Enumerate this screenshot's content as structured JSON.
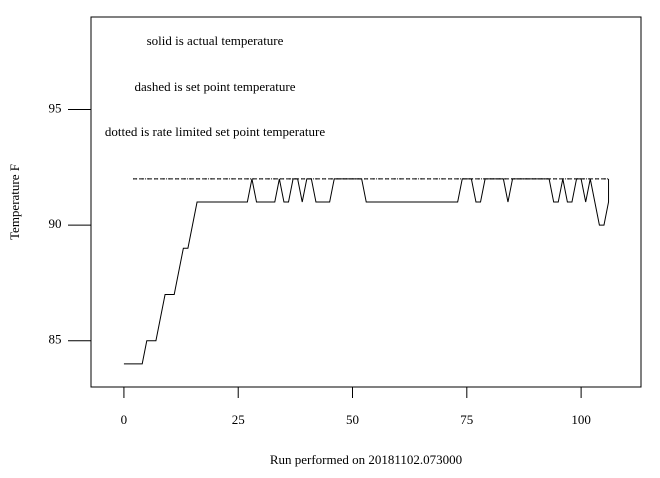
{
  "chart_data": {
    "type": "line",
    "x_label": "Run performed on 20181102.073000",
    "y_label": "Temperature F",
    "annotations": [
      "solid is actual temperature",
      "dashed is set point temperature",
      "dotted is rate limited set point temperature"
    ],
    "xlim": [
      -7.2,
      113.1
    ],
    "ylim": [
      83.0,
      99.0
    ],
    "xticks": [
      0,
      25,
      50,
      75,
      100
    ],
    "yticks": [
      85,
      90,
      95
    ],
    "series": [
      {
        "color": "#000000",
        "style": "solid",
        "x": [
          0,
          4,
          5,
          7,
          9,
          11,
          13,
          14,
          16,
          27,
          28,
          29,
          33,
          34,
          35,
          36,
          37,
          38,
          39,
          40,
          41,
          42,
          45,
          46,
          52,
          53,
          73,
          74,
          76,
          77,
          78,
          79,
          83,
          84,
          85,
          93,
          94,
          95,
          96,
          97,
          98,
          99,
          100,
          101,
          102,
          103,
          104,
          105,
          106,
          106
        ],
        "values": [
          84,
          84,
          85,
          85,
          87,
          87,
          89,
          89,
          91,
          91,
          92,
          91,
          91,
          92,
          91,
          91,
          92,
          92,
          91,
          92,
          92,
          91,
          91,
          92,
          92,
          91,
          91,
          92,
          92,
          91,
          91,
          92,
          92,
          91,
          92,
          92,
          91,
          91,
          92,
          91,
          91,
          92,
          92,
          91,
          92,
          91,
          90,
          90,
          91,
          92
        ]
      },
      {
        "color": "#000000",
        "style": "dashed",
        "x": [
          2,
          106
        ],
        "values": [
          92,
          92
        ]
      },
      {
        "color": "#000000",
        "style": "dotted",
        "x": [
          2,
          106
        ],
        "values": [
          92,
          92
        ]
      }
    ]
  }
}
